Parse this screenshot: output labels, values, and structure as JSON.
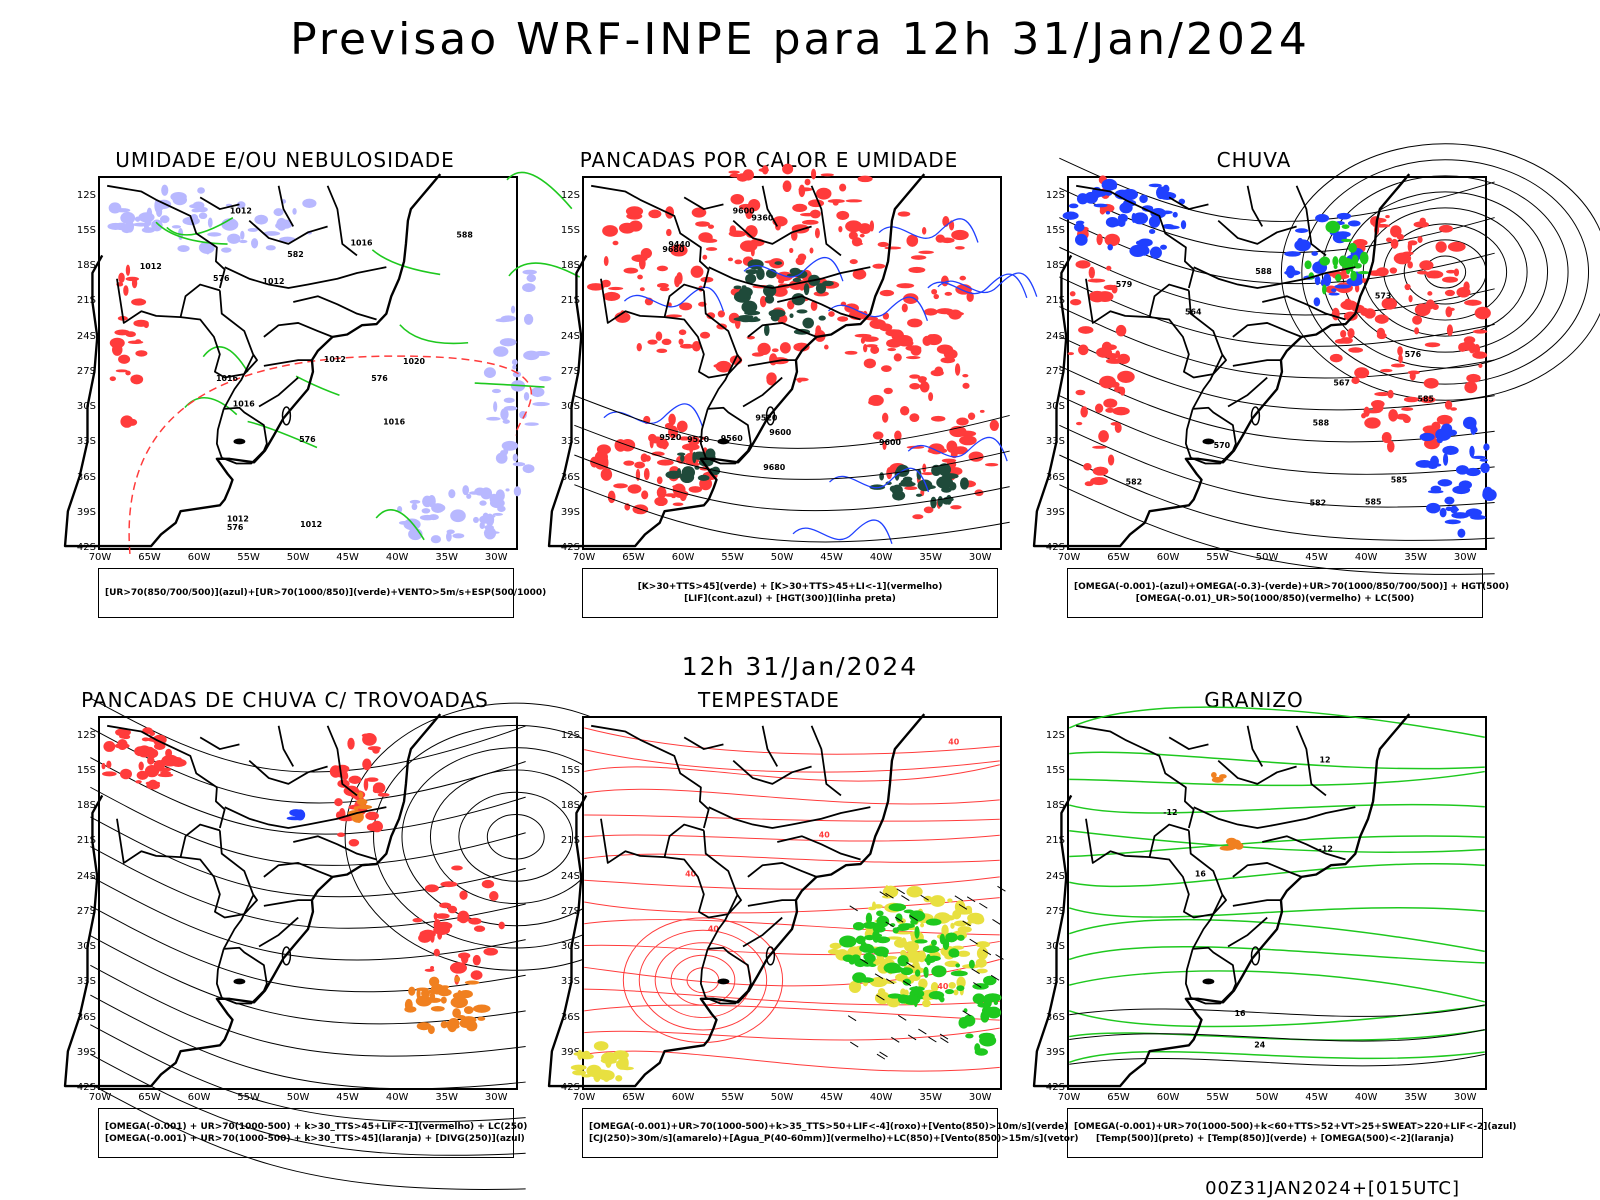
{
  "title": "Previsao WRF-INPE  para 12h 31/Jan/2024",
  "mid_title": "12h 31/Jan/2024",
  "footer": "00Z31JAN2024+[015UTC]",
  "lat_labels": [
    "12S",
    "15S",
    "18S",
    "21S",
    "24S",
    "27S",
    "30S",
    "33S",
    "36S",
    "39S",
    "42S"
  ],
  "lon_labels": [
    "70W",
    "65W",
    "60W",
    "55W",
    "50W",
    "45W",
    "40W",
    "35W",
    "30W"
  ],
  "colors": {
    "red": "#ff3b3b",
    "green": "#1ec81e",
    "blue": "#2040ff",
    "lavender": "#b8b8ff",
    "darkgreen": "#1f4a3a",
    "yellow": "#e8e040",
    "orange": "#f08020",
    "black": "#000000"
  },
  "panels": [
    {
      "id": "umidade",
      "title": "UMIDADE E/OU NEBULOSIDADE",
      "legend": [
        "[UR>70(850/700/500)](azul)+[UR>70(1000/850)](verde)+VENTO>5m/s+ESP(500/1000)",
        ""
      ],
      "labels": [
        "1016",
        "1012",
        "1012",
        "1020",
        "1016",
        "576",
        "576",
        "1012",
        "1016",
        "1012",
        "1012",
        "582",
        "576",
        "576",
        "1012",
        "588",
        "1016"
      ]
    },
    {
      "id": "pancadas",
      "title": "PANCADAS POR CALOR E UMIDADE",
      "legend": [
        "[K>30+TTS>45](verde) + [K>30+TTS>45+LI<-1](vermelho)",
        "[LIF](cont.azul) + [HGT(300)](linha preta)"
      ],
      "labels": [
        "9600",
        "9680",
        "9560",
        "9520",
        "9600",
        "9520",
        "9600",
        "9520",
        "9440",
        "9360",
        "9680"
      ]
    },
    {
      "id": "chuva",
      "title": "CHUVA",
      "legend": [
        "[OMEGA(-0.001)-(azul)+OMEGA(-0.3)-(verde)+UR>70(1000/850/700/500)] + HGT(500)",
        "[OMEGA(-0.01)_UR>50(1000/850)(vermelho) + LC(500)"
      ],
      "labels": [
        "588",
        "585",
        "585",
        "582",
        "579",
        "585",
        "582",
        "576",
        "573",
        "570",
        "567",
        "564",
        "588"
      ]
    },
    {
      "id": "trovoadas",
      "title": "PANCADAS DE CHUVA C/ TROVOADAS",
      "legend": [
        "[OMEGA(-0.001) + UR>70(1000-500) + k>30_TTS>45+LIF<-1](vermelho) + LC(250)",
        "[OMEGA(-0.001) + UR>70(1000-500) + k>30_TTS>45](laranja) + [DIVG(250)](azul)"
      ],
      "labels": []
    },
    {
      "id": "tempestade",
      "title": "TEMPESTADE",
      "legend": [
        "[OMEGA(-0.001)+UR>70(1000-500)+k>35_TTS>50+LIF<-4](roxo)+[Vento(850)>10m/s](verde)",
        "[CJ(250)>30m/s](amarelo)+[Agua_P(40-60mm)](vermelho)+LC(850)+[Vento(850)>15m/s](vetor)"
      ],
      "labels": [
        "40",
        "40",
        "40",
        "40",
        "40"
      ]
    },
    {
      "id": "granizo",
      "title": "GRANIZO",
      "legend": [
        "[OMEGA(-0.001)+UR>70(1000-500)+k<60+TTS>52+VT>25+SWEAT>220+LIF<-2](azul)",
        "[Temp(500)](preto) + [Temp(850)](verde) + [OMEGA(500)<-2](laranja)"
      ],
      "labels": [
        "-12",
        "16",
        "-12",
        "12",
        "16",
        "24"
      ]
    }
  ]
}
